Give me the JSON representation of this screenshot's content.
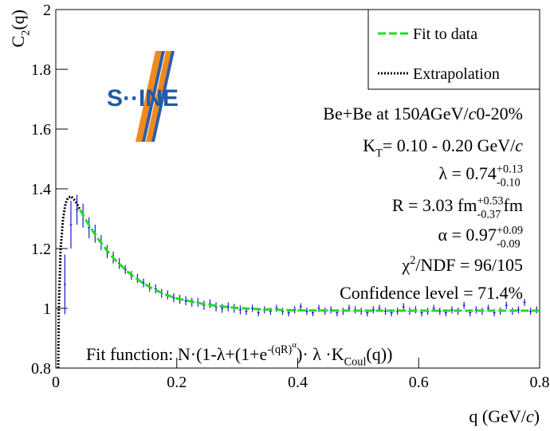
{
  "chart_data": {
    "type": "scatter",
    "logo": "S··INE",
    "ylabel": [
      {
        "text": "C",
        "pos": "base"
      },
      {
        "text": "2",
        "pos": "sub"
      },
      {
        "text": "(q)",
        "pos": "base"
      }
    ],
    "xlabel": [
      {
        "text": "q (GeV/",
        "pos": "base"
      },
      {
        "text": "c",
        "pos": "italic"
      },
      {
        "text": ")",
        "pos": "base"
      }
    ],
    "xlim": [
      0,
      0.8
    ],
    "xticks": [
      0,
      0.2,
      0.4,
      0.6,
      0.8
    ],
    "ylim": [
      0.8,
      2
    ],
    "yticks": [
      0.8,
      1,
      1.2,
      1.4,
      1.6,
      1.8,
      2
    ],
    "points": {
      "color": "#1a1acc",
      "x": [
        0.015,
        0.025,
        0.035,
        0.045,
        0.055,
        0.065,
        0.075,
        0.085,
        0.095,
        0.105,
        0.115,
        0.125,
        0.135,
        0.145,
        0.155,
        0.165,
        0.175,
        0.185,
        0.195,
        0.205,
        0.215,
        0.225,
        0.235,
        0.245,
        0.255,
        0.265,
        0.275,
        0.285,
        0.295,
        0.305,
        0.315,
        0.325,
        0.335,
        0.345,
        0.355,
        0.365,
        0.375,
        0.385,
        0.395,
        0.405,
        0.415,
        0.425,
        0.435,
        0.445,
        0.455,
        0.465,
        0.475,
        0.485,
        0.495,
        0.505,
        0.515,
        0.525,
        0.535,
        0.545,
        0.555,
        0.565,
        0.575,
        0.585,
        0.595,
        0.605,
        0.615,
        0.625,
        0.635,
        0.645,
        0.655,
        0.665,
        0.675,
        0.685,
        0.695,
        0.705,
        0.715,
        0.725,
        0.735,
        0.745,
        0.755,
        0.765,
        0.775,
        0.785,
        0.795
      ],
      "values": [
        1.08,
        1.28,
        1.33,
        1.31,
        1.27,
        1.25,
        1.22,
        1.19,
        1.17,
        1.15,
        1.13,
        1.11,
        1.1,
        1.085,
        1.07,
        1.065,
        1.05,
        1.045,
        1.035,
        1.03,
        1.025,
        1.02,
        1.02,
        1.01,
        1.015,
        1.005,
        1.0,
        1.005,
        1.0,
        0.995,
        0.99,
        1.0,
        0.985,
        0.995,
        0.99,
        1.0,
        0.99,
        0.985,
        0.995,
        1.005,
        0.99,
        0.985,
        1.0,
        0.99,
        0.995,
        0.985,
        0.99,
        1.0,
        0.995,
        0.99,
        0.985,
        0.995,
        1.0,
        0.99,
        0.985,
        0.99,
        1.005,
        0.99,
        0.995,
        0.985,
        0.99,
        1.0,
        0.99,
        0.985,
        0.995,
        0.99,
        1.01,
        0.985,
        0.995,
        0.99,
        1.0,
        0.985,
        0.99,
        1.01,
        0.99,
        0.995,
        1.02,
        0.99,
        0.995
      ],
      "errors": [
        0.1,
        0.08,
        0.05,
        0.04,
        0.035,
        0.03,
        0.025,
        0.022,
        0.02,
        0.018,
        0.015,
        0.015,
        0.015,
        0.015,
        0.015,
        0.015,
        0.015,
        0.015,
        0.015,
        0.015,
        0.015,
        0.015,
        0.015,
        0.015,
        0.015,
        0.015,
        0.015,
        0.015,
        0.015,
        0.015,
        0.012,
        0.012,
        0.012,
        0.012,
        0.012,
        0.012,
        0.012,
        0.012,
        0.012,
        0.012,
        0.012,
        0.012,
        0.012,
        0.012,
        0.012,
        0.012,
        0.012,
        0.012,
        0.012,
        0.012,
        0.012,
        0.012,
        0.012,
        0.012,
        0.012,
        0.012,
        0.012,
        0.012,
        0.012,
        0.012,
        0.012,
        0.012,
        0.012,
        0.012,
        0.012,
        0.012,
        0.012,
        0.012,
        0.012,
        0.012,
        0.012,
        0.012,
        0.012,
        0.012,
        0.012,
        0.012,
        0.012,
        0.012,
        0.012
      ]
    },
    "series": [
      {
        "name": "Fit to data",
        "color": "#22dd22",
        "dash": "dashed",
        "x": [
          0.04,
          0.05,
          0.06,
          0.07,
          0.08,
          0.09,
          0.1,
          0.12,
          0.14,
          0.16,
          0.18,
          0.2,
          0.25,
          0.3,
          0.35,
          0.4,
          0.5,
          0.6,
          0.7,
          0.8
        ],
        "values": [
          1.33,
          1.295,
          1.262,
          1.232,
          1.205,
          1.18,
          1.158,
          1.12,
          1.09,
          1.066,
          1.047,
          1.033,
          1.012,
          1.001,
          0.996,
          0.993,
          0.992,
          0.992,
          0.992,
          0.992
        ]
      },
      {
        "name": "Extrapolation",
        "color": "#000000",
        "dash": "dotted",
        "x": [
          0.004,
          0.005,
          0.008,
          0.012,
          0.016,
          0.02,
          0.025,
          0.03,
          0.035,
          0.04
        ],
        "values": [
          0.8,
          1.0,
          1.2,
          1.3,
          1.35,
          1.37,
          1.375,
          1.365,
          1.35,
          1.33
        ]
      }
    ],
    "annotations": [
      [
        {
          "text": "Be+Be at 150",
          "pos": "base"
        },
        {
          "text": "A",
          "pos": "italic"
        },
        {
          "text": " GeV/",
          "pos": "base"
        },
        {
          "text": "c",
          "pos": "italic"
        },
        {
          "text": " 0-20%",
          "pos": "base"
        }
      ],
      [
        {
          "text": "K",
          "pos": "base"
        },
        {
          "text": "T",
          "pos": "sub"
        },
        {
          "text": " = 0.10 - 0.20 GeV/",
          "pos": "base"
        },
        {
          "text": "c",
          "pos": "italic"
        }
      ],
      [
        {
          "text": "λ = 0.74 ",
          "pos": "base"
        },
        {
          "text": "+0.13",
          "pos": "up"
        },
        {
          "text": "-0.10",
          "pos": "down"
        }
      ],
      [
        {
          "text": "R = 3.03 fm ",
          "pos": "base"
        },
        {
          "text": "+0.53",
          "pos": "up"
        },
        {
          "text": "-0.37",
          "pos": "down"
        },
        {
          "text": " fm",
          "pos": "base"
        }
      ],
      [
        {
          "text": "α = 0.97 ",
          "pos": "base"
        },
        {
          "text": "+0.09",
          "pos": "up"
        },
        {
          "text": "-0.09",
          "pos": "down"
        }
      ],
      [
        {
          "text": "χ",
          "pos": "base"
        },
        {
          "text": "2",
          "pos": "sup"
        },
        {
          "text": "/NDF = 96/105",
          "pos": "base"
        }
      ],
      [
        {
          "text": "Confidence level = 71.4%",
          "pos": "base"
        }
      ]
    ],
    "fit_function": [
      {
        "text": "Fit function: N·(1-λ+(1+e",
        "pos": "base"
      },
      {
        "text": "-(qR)",
        "pos": "sup"
      },
      {
        "text": "α",
        "pos": "supsup"
      },
      {
        "text": ")· λ ·K",
        "pos": "base"
      },
      {
        "text": "Coul",
        "pos": "sub"
      },
      {
        "text": "(q))",
        "pos": "base"
      }
    ]
  }
}
